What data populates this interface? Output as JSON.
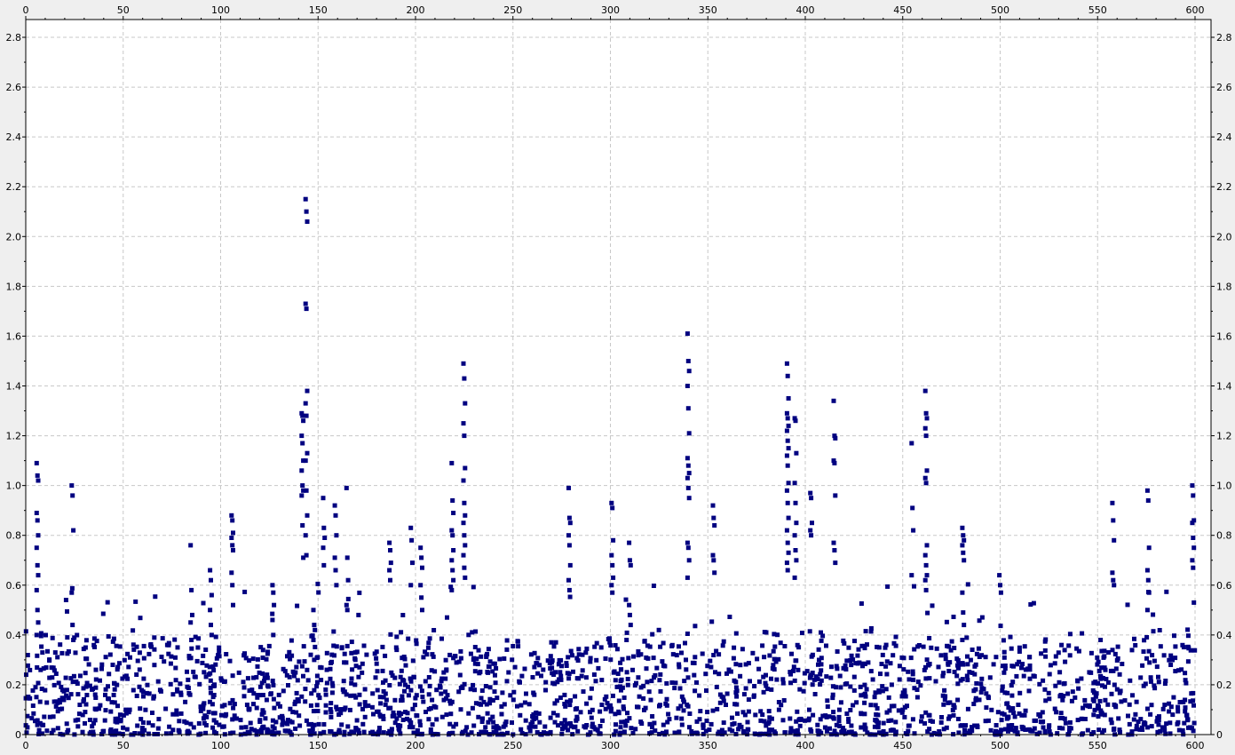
{
  "chart_data": {
    "type": "scatter",
    "title": "",
    "xlabel": "",
    "ylabel": "",
    "xlim": [
      0,
      605
    ],
    "ylim": [
      0,
      2.85
    ],
    "x_ticks": [
      "0",
      "50",
      "100",
      "150",
      "200",
      "250",
      "300",
      "350",
      "400",
      "450",
      "500",
      "550",
      "600"
    ],
    "y_ticks": [
      "0",
      "0.2",
      "0.4",
      "0.6",
      "0.8",
      "1.0",
      "1.2",
      "1.4",
      "1.6",
      "1.8",
      "2.0",
      "2.2",
      "2.4",
      "2.6",
      "2.8"
    ],
    "grid": true,
    "legend": "none",
    "colors": {
      "marker": "#000080",
      "plot_background": "#ffffff",
      "grid": "#c8c8c8",
      "frame": "#000000"
    },
    "series": [
      {
        "peaks": [
          {
            "x": 6,
            "y": [
              1.09,
              1.04,
              1.02,
              0.89,
              0.86,
              0.8,
              0.75,
              0.68,
              0.64,
              0.58,
              0.5,
              0.45,
              0.4
            ]
          },
          {
            "x": 24,
            "y": [
              1.0,
              0.96,
              0.82,
              0.57,
              0.44,
              0.38
            ]
          },
          {
            "x": 85,
            "y": [
              0.76,
              0.58,
              0.48,
              0.45,
              0.38
            ]
          },
          {
            "x": 95,
            "y": [
              0.66,
              0.62,
              0.56,
              0.5,
              0.44,
              0.4
            ]
          },
          {
            "x": 106,
            "y": [
              0.88,
              0.86,
              0.81,
              0.79,
              0.76,
              0.74,
              0.65,
              0.6,
              0.52
            ]
          },
          {
            "x": 127,
            "y": [
              0.6,
              0.57,
              0.52,
              0.46,
              0.4
            ]
          },
          {
            "x": 142,
            "y": [
              1.29,
              1.28,
              1.26,
              1.2,
              1.17,
              1.1,
              1.06,
              1.0,
              0.98,
              0.96,
              0.84,
              0.71
            ]
          },
          {
            "x": 144,
            "y": [
              2.15,
              2.1,
              2.06,
              1.73,
              1.71,
              1.38,
              1.33,
              1.28,
              1.13,
              1.1,
              0.98,
              0.88,
              0.8,
              0.72
            ]
          },
          {
            "x": 148,
            "y": [
              0.5,
              0.44,
              0.42,
              0.38,
              0.3
            ]
          },
          {
            "x": 153,
            "y": [
              0.95,
              0.83,
              0.79,
              0.75,
              0.68
            ]
          },
          {
            "x": 159,
            "y": [
              0.92,
              0.88,
              0.8,
              0.71,
              0.66,
              0.6
            ]
          },
          {
            "x": 165,
            "y": [
              0.99,
              0.71,
              0.62,
              0.52,
              0.5
            ]
          },
          {
            "x": 187,
            "y": [
              0.77,
              0.74,
              0.69,
              0.66,
              0.62
            ]
          },
          {
            "x": 198,
            "y": [
              0.83,
              0.78,
              0.69,
              0.6
            ]
          },
          {
            "x": 203,
            "y": [
              0.75,
              0.71,
              0.67,
              0.6,
              0.55,
              0.5
            ]
          },
          {
            "x": 219,
            "y": [
              1.09,
              0.94,
              0.89,
              0.82,
              0.8,
              0.74,
              0.7,
              0.66,
              0.62,
              0.58
            ]
          },
          {
            "x": 225,
            "y": [
              1.49,
              1.43,
              1.33,
              1.25,
              1.2,
              1.07,
              1.02,
              0.93,
              0.88,
              0.85,
              0.8,
              0.76,
              0.72,
              0.67,
              0.63
            ]
          },
          {
            "x": 279,
            "y": [
              0.99,
              0.87,
              0.85,
              0.8,
              0.76,
              0.68,
              0.62,
              0.58
            ]
          },
          {
            "x": 301,
            "y": [
              0.93,
              0.91,
              0.78,
              0.72,
              0.68,
              0.63,
              0.6,
              0.57
            ]
          },
          {
            "x": 310,
            "y": [
              0.77,
              0.7,
              0.68,
              0.52,
              0.48,
              0.44
            ]
          },
          {
            "x": 340,
            "y": [
              1.61,
              1.5,
              1.46,
              1.4,
              1.31,
              1.21,
              1.11,
              1.08,
              1.05,
              1.03,
              0.99,
              0.95,
              0.77,
              0.75,
              0.7,
              0.63
            ]
          },
          {
            "x": 353,
            "y": [
              0.92,
              0.87,
              0.84,
              0.72,
              0.7,
              0.65
            ]
          },
          {
            "x": 391,
            "y": [
              1.49,
              1.44,
              1.35,
              1.29,
              1.27,
              1.24,
              1.22,
              1.18,
              1.15,
              1.12,
              1.08,
              1.01,
              0.98,
              0.93,
              0.87,
              0.82,
              0.77,
              0.73,
              0.69,
              0.66
            ]
          },
          {
            "x": 395,
            "y": [
              1.27,
              1.26,
              1.13,
              1.01,
              0.93,
              0.85,
              0.8,
              0.74,
              0.7,
              0.63
            ]
          },
          {
            "x": 403,
            "y": [
              0.97,
              0.95,
              0.85,
              0.82,
              0.8
            ]
          },
          {
            "x": 415,
            "y": [
              1.34,
              1.2,
              1.19,
              1.1,
              1.09,
              0.96,
              0.77,
              0.74,
              0.69
            ]
          },
          {
            "x": 455,
            "y": [
              1.17,
              0.91,
              0.82,
              0.64
            ]
          },
          {
            "x": 462,
            "y": [
              1.38,
              1.29,
              1.27,
              1.23,
              1.2,
              1.06,
              1.03,
              1.01,
              0.76,
              0.72,
              0.68,
              0.64,
              0.62,
              0.58
            ]
          },
          {
            "x": 481,
            "y": [
              0.83,
              0.8,
              0.78,
              0.76,
              0.73,
              0.7,
              0.57,
              0.49,
              0.44,
              0.38
            ]
          },
          {
            "x": 500,
            "y": [
              0.64,
              0.6,
              0.57
            ]
          },
          {
            "x": 558,
            "y": [
              0.93,
              0.86,
              0.78,
              0.65,
              0.62,
              0.6
            ]
          },
          {
            "x": 576,
            "y": [
              0.98,
              0.94,
              0.75,
              0.66,
              0.62,
              0.57,
              0.5
            ]
          },
          {
            "x": 599,
            "y": [
              1.0,
              0.96,
              0.86,
              0.85,
              0.79,
              0.75,
              0.7,
              0.67,
              0.53
            ]
          }
        ],
        "background": {
          "count": 2300,
          "x_range": [
            0,
            600
          ],
          "y_distribution": "dense below 0.35, sparse to 0.6",
          "seed": 7
        }
      }
    ]
  }
}
